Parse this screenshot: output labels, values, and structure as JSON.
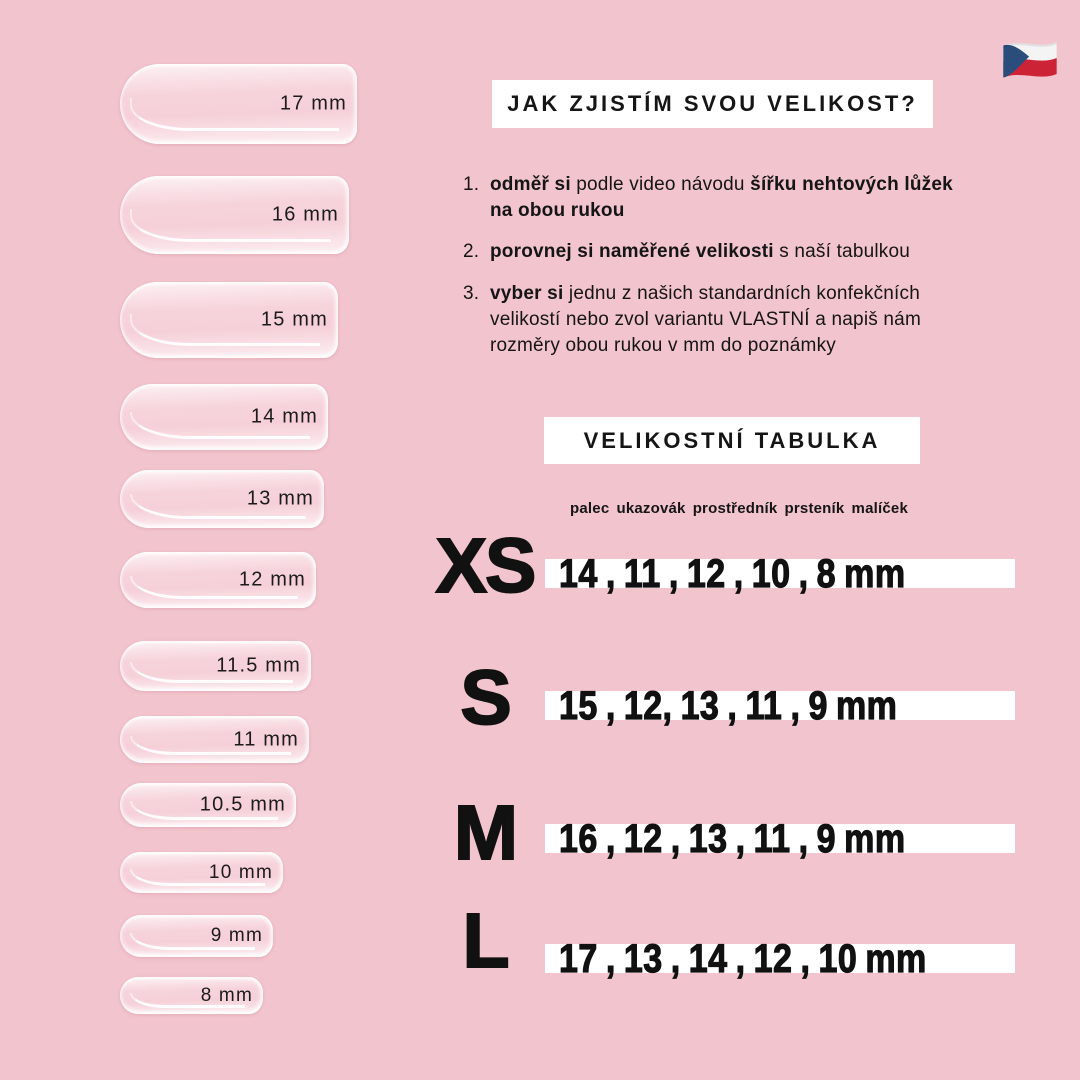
{
  "page": {
    "background": "#f2c4cd",
    "accent_white": "#ffffff",
    "text_color": "#151515"
  },
  "flag": {
    "name": "czech-flag",
    "white": "#f4f4f4",
    "red": "#cd2337",
    "blue": "#2a4d7c"
  },
  "header": {
    "title": "JAK ZJISTÍM SVOU VELIKOST?"
  },
  "steps": [
    {
      "num": "1.",
      "segments": [
        {
          "text": "odměř si",
          "bold": true
        },
        {
          "text": " podle video návodu ",
          "bold": false
        },
        {
          "text": "šířku nehtových lůžek",
          "bold": true
        },
        {
          "br": true
        },
        {
          "text": "na obou rukou",
          "bold": true
        }
      ]
    },
    {
      "num": "2.",
      "segments": [
        {
          "text": "porovnej si naměřené velikosti",
          "bold": true
        },
        {
          "text": " s naší tabulkou",
          "bold": false
        }
      ]
    },
    {
      "num": "3.",
      "segments": [
        {
          "text": "vyber si",
          "bold": true
        },
        {
          "text": " jednu z našich standardních konfekčních",
          "bold": false
        },
        {
          "br": true
        },
        {
          "text": "velikostí nebo zvol variantu VLASTNÍ a napiš nám",
          "bold": false
        },
        {
          "br": true
        },
        {
          "text": "rozměry obou rukou v mm do poznámky",
          "bold": false
        }
      ]
    }
  ],
  "size_table": {
    "title": "VELIKOSTNÍ TABULKA",
    "fingers": [
      "palec",
      "ukazovák",
      "prostředník",
      "prsteník",
      "malíček"
    ],
    "rows": [
      {
        "size": "XS",
        "display": "14 , 11 , 12 , 10 , 8 mm",
        "values_mm": [
          14,
          11,
          12,
          10,
          8
        ]
      },
      {
        "size": "S",
        "display": "15 , 12, 13 , 11 , 9 mm",
        "values_mm": [
          15,
          12,
          13,
          11,
          9
        ]
      },
      {
        "size": "M",
        "display": "16 , 12 , 13 , 11 , 9 mm",
        "values_mm": [
          16,
          12,
          13,
          11,
          9
        ]
      },
      {
        "size": "L",
        "display": "17 , 13 , 14 , 12 , 10 mm",
        "values_mm": [
          17,
          13,
          14,
          12,
          10
        ]
      }
    ]
  },
  "nail_sizes": [
    {
      "label": "17 mm"
    },
    {
      "label": "16 mm"
    },
    {
      "label": "15 mm"
    },
    {
      "label": "14 mm"
    },
    {
      "label": "13 mm"
    },
    {
      "label": "12 mm"
    },
    {
      "label": "11.5 mm"
    },
    {
      "label": "11 mm"
    },
    {
      "label": "10.5 mm"
    },
    {
      "label": "10 mm"
    },
    {
      "label": "9 mm"
    },
    {
      "label": "8 mm"
    }
  ]
}
